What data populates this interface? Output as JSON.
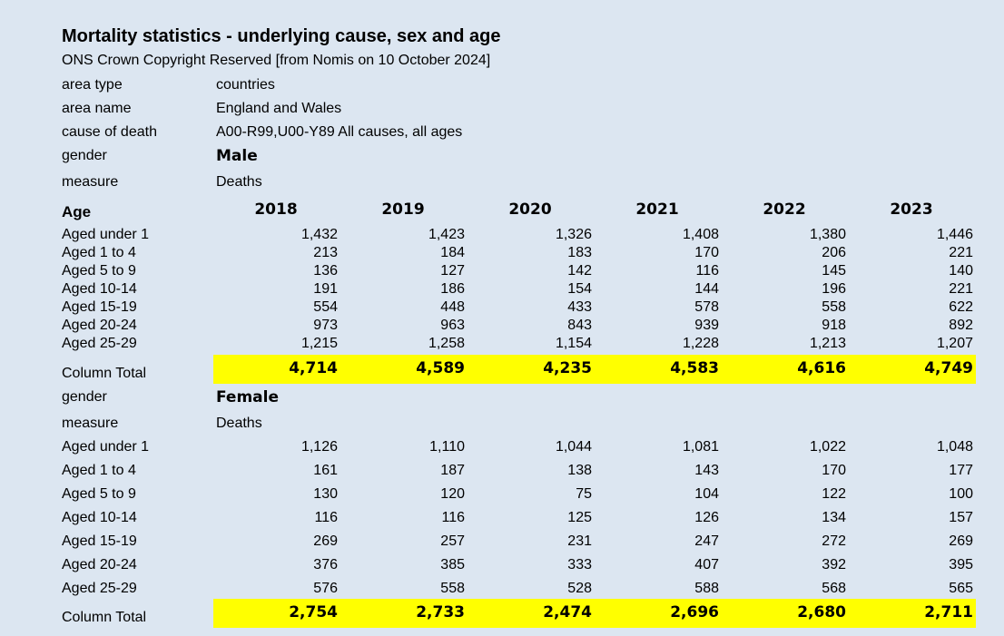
{
  "title": "Mortality statistics - underlying cause, sex and age",
  "subtitle": "ONS Crown Copyright Reserved [from Nomis on 10 October 2024]",
  "meta": {
    "area_type_label": "area type",
    "area_type_value": "countries",
    "area_name_label": "area name",
    "area_name_value": "England and Wales",
    "cause_label": "cause of death",
    "cause_value": "A00-R99,U00-Y89 All causes, all ages"
  },
  "age_header": "Age",
  "years": [
    "2018",
    "2019",
    "2020",
    "2021",
    "2022",
    "2023"
  ],
  "column_total_label": "Column Total",
  "male": {
    "gender_label": "gender",
    "gender_value": "Male",
    "measure_label": "measure",
    "measure_value": "Deaths",
    "rows": [
      {
        "label": "Aged under 1",
        "values": [
          "1,432",
          "1,423",
          "1,326",
          "1,408",
          "1,380",
          "1,446"
        ]
      },
      {
        "label": "Aged 1 to 4",
        "values": [
          "213",
          "184",
          "183",
          "170",
          "206",
          "221"
        ]
      },
      {
        "label": "Aged 5 to 9",
        "values": [
          "136",
          "127",
          "142",
          "116",
          "145",
          "140"
        ]
      },
      {
        "label": "Aged 10-14",
        "values": [
          "191",
          "186",
          "154",
          "144",
          "196",
          "221"
        ]
      },
      {
        "label": "Aged 15-19",
        "values": [
          "554",
          "448",
          "433",
          "578",
          "558",
          "622"
        ]
      },
      {
        "label": "Aged 20-24",
        "values": [
          "973",
          "963",
          "843",
          "939",
          "918",
          "892"
        ]
      },
      {
        "label": "Aged 25-29",
        "values": [
          "1,215",
          "1,258",
          "1,154",
          "1,228",
          "1,213",
          "1,207"
        ]
      }
    ],
    "totals": [
      "4,714",
      "4,589",
      "4,235",
      "4,583",
      "4,616",
      "4,749"
    ]
  },
  "female": {
    "gender_label": "gender",
    "gender_value": "Female",
    "measure_label": "measure",
    "measure_value": "Deaths",
    "rows": [
      {
        "label": "Aged under 1",
        "values": [
          "1,126",
          "1,110",
          "1,044",
          "1,081",
          "1,022",
          "1,048"
        ]
      },
      {
        "label": "Aged 1 to 4",
        "values": [
          "161",
          "187",
          "138",
          "143",
          "170",
          "177"
        ]
      },
      {
        "label": "Aged 5 to 9",
        "values": [
          "130",
          "120",
          "75",
          "104",
          "122",
          "100"
        ]
      },
      {
        "label": "Aged 10-14",
        "values": [
          "116",
          "116",
          "125",
          "126",
          "134",
          "157"
        ]
      },
      {
        "label": "Aged 15-19",
        "values": [
          "269",
          "257",
          "231",
          "247",
          "272",
          "269"
        ]
      },
      {
        "label": "Aged 20-24",
        "values": [
          "376",
          "385",
          "333",
          "407",
          "392",
          "395"
        ]
      },
      {
        "label": "Aged 25-29",
        "values": [
          "576",
          "558",
          "528",
          "588",
          "568",
          "565"
        ]
      }
    ],
    "totals": [
      "2,754",
      "2,733",
      "2,474",
      "2,696",
      "2,680",
      "2,711"
    ]
  },
  "colors": {
    "background": "#dce6f1",
    "total_highlight": "#ffff00"
  }
}
